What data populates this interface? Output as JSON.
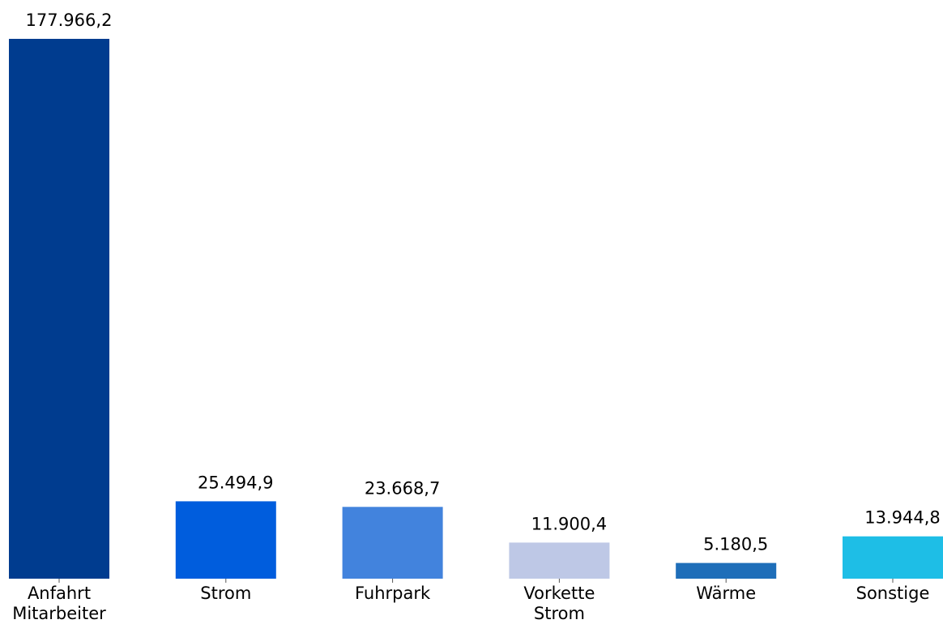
{
  "chart_data": {
    "type": "bar",
    "title": "",
    "xlabel": "",
    "ylabel": "",
    "ylim": [
      0,
      177966.2
    ],
    "grid": false,
    "categories": [
      [
        "Anfahrt",
        "Mitarbeiter"
      ],
      [
        "Strom"
      ],
      [
        "Fuhrpark"
      ],
      [
        "Vorkette",
        "Strom"
      ],
      [
        "Wärme"
      ],
      [
        "Sonstige"
      ]
    ],
    "values": [
      177966.2,
      25494.9,
      23668.7,
      11900.4,
      5180.5,
      13944.8
    ],
    "value_labels": [
      "177.966,2",
      "25.494,9",
      "23.668,7",
      "11.900,4",
      "5.180,5",
      "13.944,8"
    ],
    "colors": [
      "#003c8f",
      "#005ddd",
      "#4283dd",
      "#bec8e6",
      "#1e6eb9",
      "#1ebee6"
    ]
  }
}
